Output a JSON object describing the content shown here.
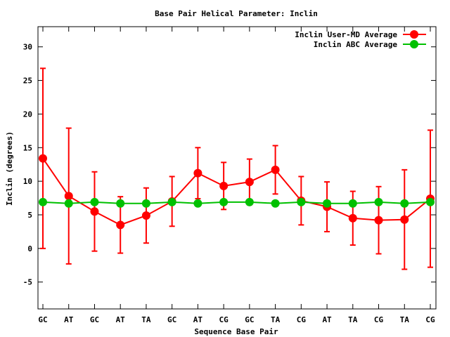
{
  "chart_data": {
    "type": "line",
    "title": "Base Pair Helical Parameter: Inclin",
    "xlabel": "Sequence Base Pair",
    "ylabel": "Inclin (degrees)",
    "categories": [
      "GC",
      "AT",
      "GC",
      "AT",
      "TA",
      "GC",
      "AT",
      "CG",
      "GC",
      "TA",
      "CG",
      "AT",
      "TA",
      "CG",
      "TA",
      "CG"
    ],
    "ylim": [
      -9,
      33
    ],
    "yticks": [
      -5,
      0,
      5,
      10,
      15,
      20,
      25,
      30
    ],
    "grid": false,
    "legend_position": "top-right",
    "series": [
      {
        "name": "Inclin User-MD Average",
        "color": "#ff0000",
        "values": [
          13.4,
          7.8,
          5.5,
          3.5,
          4.9,
          7.0,
          11.2,
          9.3,
          9.9,
          11.7,
          7.1,
          6.2,
          4.5,
          4.2,
          4.3,
          7.4
        ],
        "error": [
          13.4,
          10.1,
          5.9,
          4.2,
          4.1,
          3.7,
          3.8,
          3.5,
          3.4,
          3.6,
          3.6,
          3.7,
          4.0,
          5.0,
          7.4,
          10.2
        ]
      },
      {
        "name": "Inclin ABC Average",
        "color": "#00c000",
        "values": [
          6.9,
          6.7,
          6.9,
          6.7,
          6.7,
          6.9,
          6.7,
          6.9,
          6.9,
          6.7,
          6.9,
          6.7,
          6.7,
          6.9,
          6.7,
          6.9
        ]
      }
    ]
  }
}
